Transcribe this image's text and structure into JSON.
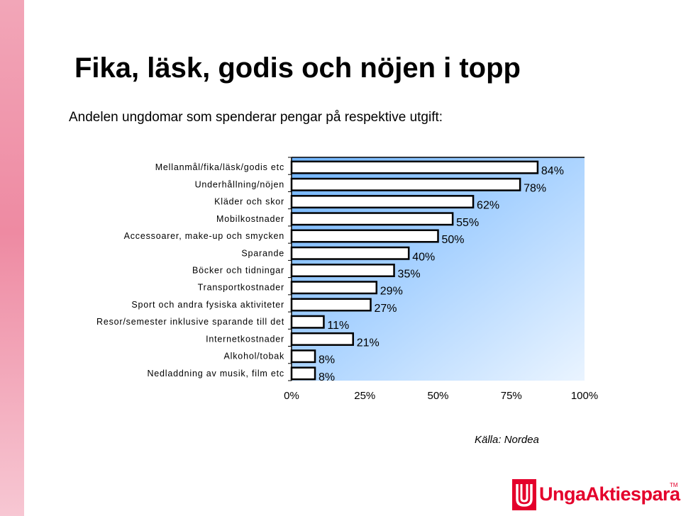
{
  "title": "Fika, läsk, godis och nöjen i topp",
  "subtitle": "Andelen ungdomar som spenderar pengar på respektive utgift:",
  "source": "Källa: Nordea",
  "logo": {
    "text": "UngaAktiesparare",
    "tm": "TM",
    "color": "#e4002b"
  },
  "colors": {
    "bar": "#000000",
    "bar_fill": "#ffffff",
    "plot_gradient_left": "#6fb4ff",
    "plot_gradient_right": "#eaf4ff",
    "stripe": "#ee8aa2"
  },
  "chart_data": {
    "type": "bar",
    "orientation": "horizontal",
    "categories": [
      "Mellanmål/fika/läsk/godis etc",
      "Underhållning/nöjen",
      "Kläder och skor",
      "Mobilkostnader",
      "Accessoarer, make-up och smycken",
      "Sparande",
      "Böcker och tidningar",
      "Transportkostnader",
      "Sport och andra fysiska aktiviteter",
      "Resor/semester inklusive sparande till det",
      "Internetkostnader",
      "Alkohol/tobak",
      "Nedladdning av musik, film etc"
    ],
    "values": [
      84,
      78,
      62,
      55,
      50,
      40,
      35,
      29,
      27,
      11,
      21,
      8,
      8
    ],
    "value_labels": [
      "84%",
      "78%",
      "62%",
      "55%",
      "50%",
      "40%",
      "35%",
      "29%",
      "27%",
      "11%",
      "21%",
      "8%",
      "8%"
    ],
    "xlim": [
      0,
      100
    ],
    "xticks": [
      "0%",
      "25%",
      "50%",
      "75%",
      "100%"
    ],
    "grid": false,
    "legend": "none"
  }
}
